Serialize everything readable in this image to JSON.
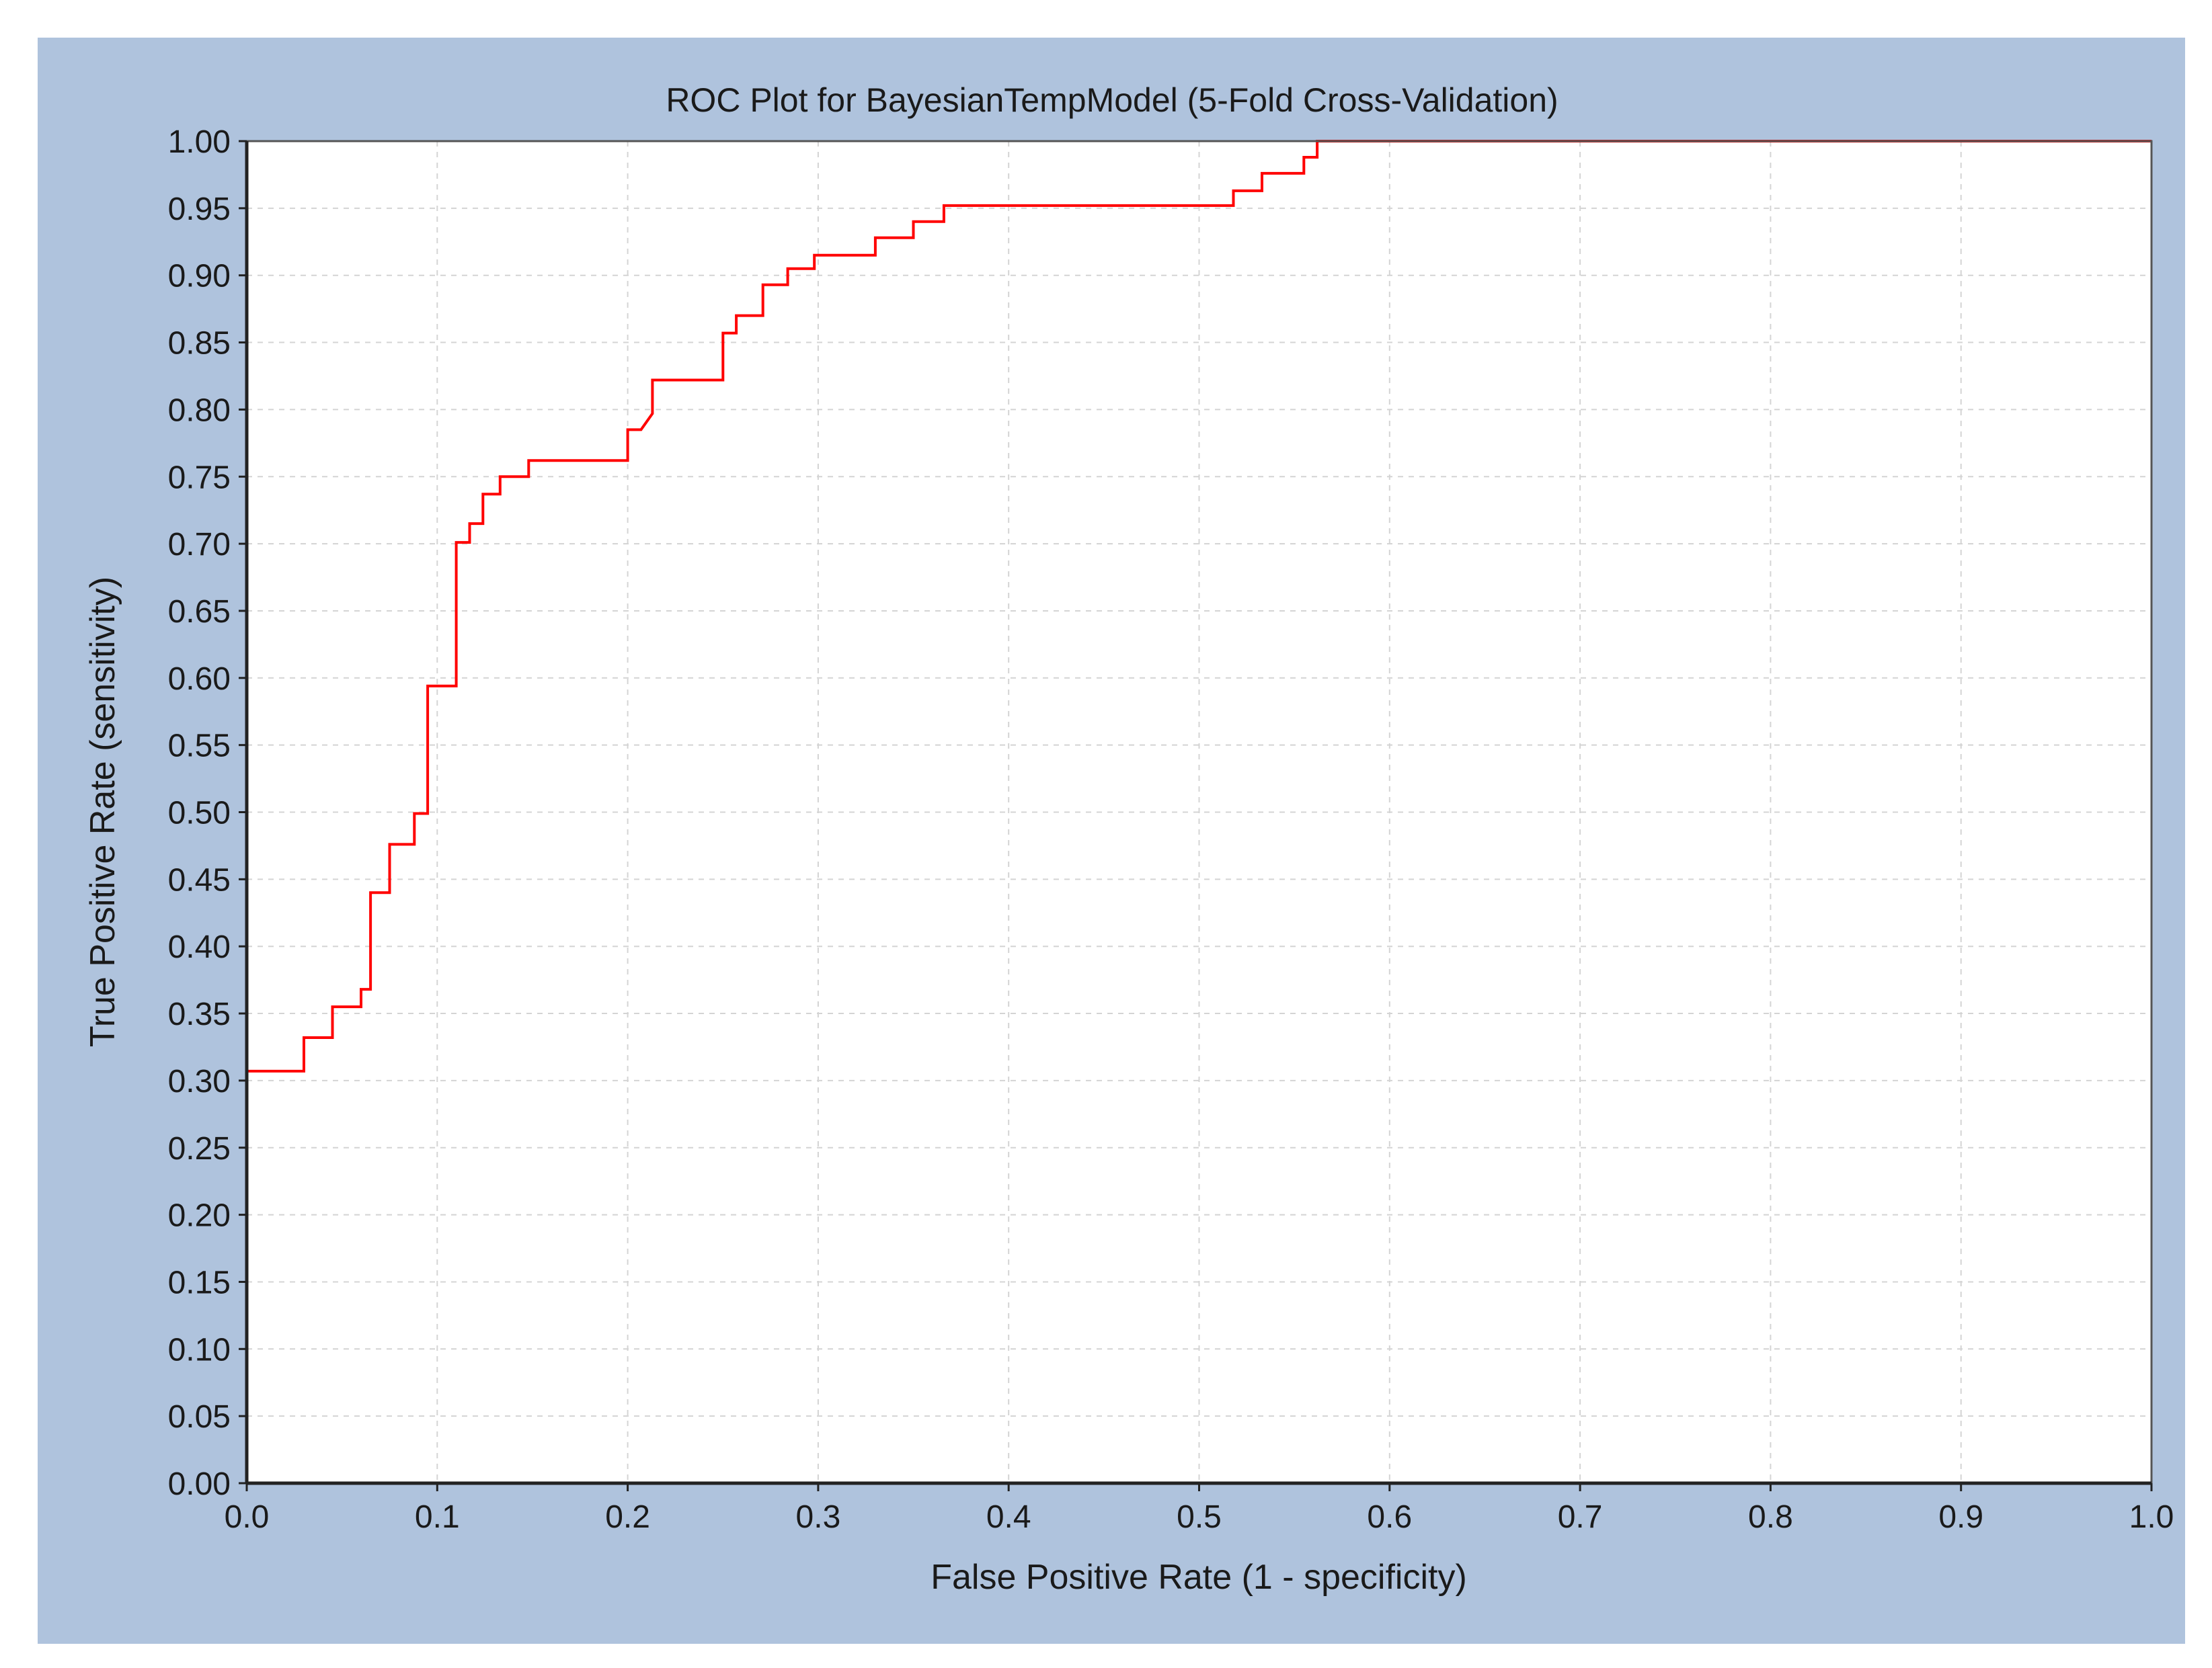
{
  "colors": {
    "panel_background": "#afc3dd",
    "plot_background": "#ffffff",
    "curve": "#ff0000",
    "grid": "#d4d4d4"
  },
  "chart_data": {
    "type": "line",
    "title": "ROC Plot for BayesianTempModel  (5-Fold Cross-Validation)",
    "xlabel": "False Positive Rate (1 - specificity)",
    "ylabel": "True Positive Rate (sensitivity)",
    "xlim": [
      0,
      1
    ],
    "ylim": [
      0,
      1
    ],
    "grid": true,
    "x_ticks": [
      "0.0",
      "0.1",
      "0.2",
      "0.3",
      "0.4",
      "0.5",
      "0.6",
      "0.7",
      "0.8",
      "0.9",
      "1.0"
    ],
    "y_ticks": [
      "0.00",
      "0.05",
      "0.10",
      "0.15",
      "0.20",
      "0.25",
      "0.30",
      "0.35",
      "0.40",
      "0.45",
      "0.50",
      "0.55",
      "0.60",
      "0.65",
      "0.70",
      "0.75",
      "0.80",
      "0.85",
      "0.90",
      "0.95",
      "1.00"
    ],
    "series": [
      {
        "color": "#ff0000",
        "x": [
          0.0,
          0.0,
          0.03,
          0.03,
          0.045,
          0.045,
          0.06,
          0.06,
          0.065,
          0.065,
          0.075,
          0.075,
          0.088,
          0.088,
          0.095,
          0.095,
          0.11,
          0.11,
          0.117,
          0.117,
          0.124,
          0.124,
          0.133,
          0.133,
          0.148,
          0.148,
          0.2,
          0.2,
          0.207,
          0.213,
          0.213,
          0.25,
          0.25,
          0.257,
          0.257,
          0.271,
          0.271,
          0.284,
          0.284,
          0.298,
          0.298,
          0.33,
          0.33,
          0.35,
          0.35,
          0.366,
          0.366,
          0.518,
          0.518,
          0.533,
          0.533,
          0.555,
          0.555,
          0.562,
          0.562,
          1.0
        ],
        "y": [
          0.0,
          0.307,
          0.307,
          0.332,
          0.332,
          0.355,
          0.355,
          0.368,
          0.368,
          0.44,
          0.44,
          0.476,
          0.476,
          0.499,
          0.499,
          0.594,
          0.594,
          0.701,
          0.701,
          0.715,
          0.715,
          0.737,
          0.737,
          0.75,
          0.75,
          0.762,
          0.762,
          0.785,
          0.785,
          0.797,
          0.822,
          0.822,
          0.857,
          0.857,
          0.87,
          0.87,
          0.893,
          0.893,
          0.905,
          0.905,
          0.915,
          0.915,
          0.928,
          0.928,
          0.94,
          0.94,
          0.952,
          0.952,
          0.963,
          0.963,
          0.976,
          0.976,
          0.988,
          0.988,
          1.0,
          1.0
        ]
      }
    ]
  }
}
